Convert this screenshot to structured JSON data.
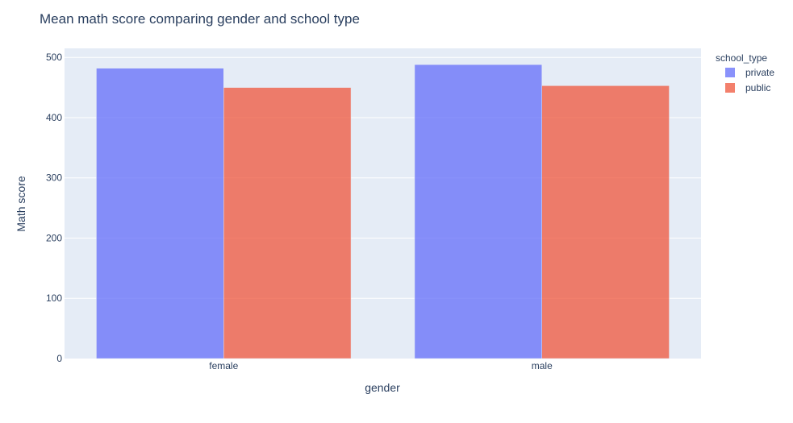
{
  "chart_data": {
    "type": "bar",
    "title": "Mean math score comparing gender and school type",
    "xlabel": "gender",
    "ylabel": "Math score",
    "categories": [
      "female",
      "male"
    ],
    "series": [
      {
        "name": "private",
        "values": [
          482,
          488
        ],
        "color": "#636efa"
      },
      {
        "name": "public",
        "values": [
          450,
          453
        ],
        "color": "#ef553b"
      }
    ],
    "ylim": [
      0,
      515
    ],
    "yticks": [
      0,
      100,
      200,
      300,
      400,
      500
    ],
    "grid": true,
    "legend": {
      "title": "school_type",
      "placement": "top-right"
    },
    "colors": {
      "plot_background": "#e5ecf6",
      "text": "#2a3f5f",
      "gridline": "#ffffff"
    }
  }
}
